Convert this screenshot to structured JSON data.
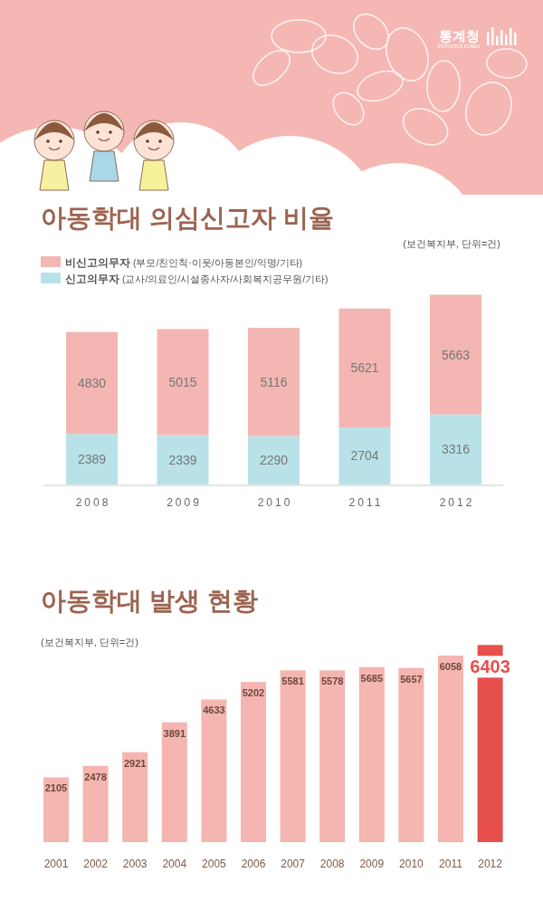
{
  "header": {
    "title": "통계청",
    "subtitle": "STATISTICS KOREA"
  },
  "chart_data": [
    {
      "type": "bar",
      "title": "아동학대 의심신고자 비율",
      "subtitle": "(보건복지부, 단위=건)",
      "stacked": true,
      "categories": [
        "2008",
        "2009",
        "2010",
        "2011",
        "2012"
      ],
      "series": [
        {
          "name": "비신고의무자 (부모/친인척·이웃/아동본인/익명/기타)",
          "color": "#f4b6b2",
          "values": [
            4830,
            5015,
            5116,
            5621,
            5663
          ]
        },
        {
          "name": "신고의무자 (교사/의료인/시설종사자/사회복지공무원/기타)",
          "color": "#b8e2e8",
          "values": [
            2389,
            2339,
            2290,
            2704,
            3316
          ]
        }
      ],
      "ylim": [
        0,
        9000
      ],
      "tick_labels": "x",
      "data_labels": true,
      "legend": "top-left",
      "grid": false
    },
    {
      "type": "bar",
      "title": "아동학대 발생 현황",
      "subtitle": "(보건복지부, 단위=건)",
      "categories": [
        "2001",
        "2002",
        "2003",
        "2004",
        "2005",
        "2006",
        "2007",
        "2008",
        "2009",
        "2010",
        "2011",
        "2012"
      ],
      "values": [
        2105,
        2478,
        2921,
        3891,
        4633,
        5202,
        5581,
        5578,
        5685,
        5657,
        6058,
        6403
      ],
      "color": "#f5b5b0",
      "colors": [
        "#f5b5b0",
        "#f5b5b0",
        "#f5b5b0",
        "#f5b5b0",
        "#f5b5b0",
        "#f5b5b0",
        "#f5b5b0",
        "#f5b5b0",
        "#f5b5b0",
        "#f5b5b0",
        "#f5b5b0",
        "#e5504c"
      ],
      "ylim": [
        0,
        7000
      ],
      "tick_labels": "x",
      "data_labels": true,
      "grid": false
    }
  ]
}
